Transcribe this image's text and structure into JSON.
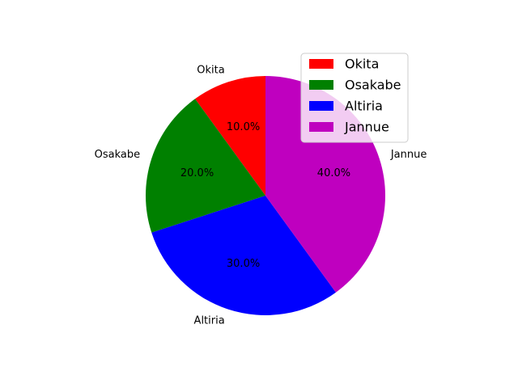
{
  "chart_data": {
    "type": "pie",
    "title": "",
    "labels": [
      "Okita",
      "Osakabe",
      "Altiria",
      "Jannue"
    ],
    "values": [
      10,
      20,
      30,
      40
    ],
    "percent_labels": [
      "10.0%",
      "20.0%",
      "30.0%",
      "40.0%"
    ],
    "colors": [
      "#ff0000",
      "#008000",
      "#0000ff",
      "#bf00bf"
    ],
    "start_angle_deg": 90,
    "direction": "counterclockwise",
    "legend": {
      "placement": "upper-right",
      "entries": [
        "Okita",
        "Osakabe",
        "Altiria",
        "Jannue"
      ]
    }
  }
}
